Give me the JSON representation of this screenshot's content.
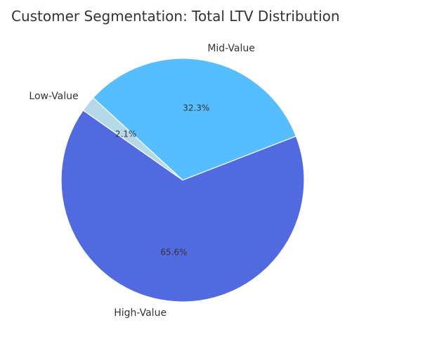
{
  "chart_data": {
    "type": "pie",
    "title": "Customer Segmentation: Total LTV Distribution",
    "slices": [
      {
        "label": "High-Value",
        "value": 65.6,
        "pct_label": "65.6%",
        "color": "#516ae0"
      },
      {
        "label": "Mid-Value",
        "value": 32.3,
        "pct_label": "32.3%",
        "color": "#56bdfe"
      },
      {
        "label": "Low-Value",
        "value": 2.1,
        "pct_label": "2.1%",
        "color": "#b5d9e9"
      }
    ],
    "start_angle_deg": 145,
    "direction": "counterclockwise",
    "legend": "none"
  }
}
